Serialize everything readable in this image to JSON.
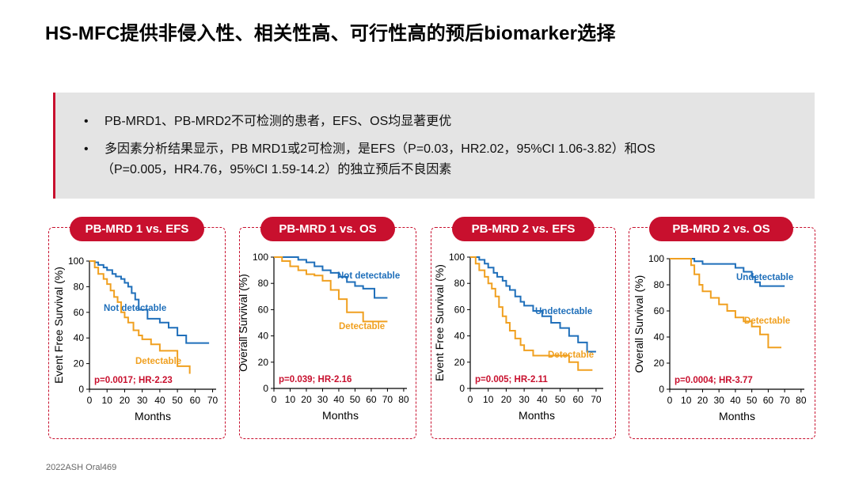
{
  "title": "HS-MFC提供非侵入性、相关性高、可行性高的预后biomarker选择",
  "callout": {
    "bullets": [
      "PB-MRD1、PB-MRD2不可检测的患者，EFS、OS均显著更优",
      "多因素分析结果显示，PB MRD1或2可检测，是EFS（P=0.03，HR2.02，95%CI 1.06-3.82）和OS",
      "（P=0.005，HR4.76，95%CI 1.59-14.2）的独立预后不良因素"
    ],
    "bullet_mark": "•"
  },
  "colors": {
    "accent": "#c8102e",
    "undetectable": "#1f6fba",
    "detectable": "#f0a020",
    "pvalue": "#c8102e"
  },
  "footer": "2022ASH Oral469",
  "chart_data": [
    {
      "type": "line",
      "title": "PB-MRD 1 vs. EFS",
      "ylabel": "Event Free Survival (%)",
      "xlabel": "Months",
      "xticks": [
        0,
        10,
        20,
        30,
        40,
        50,
        60,
        70
      ],
      "yticks": [
        0,
        20,
        40,
        60,
        80,
        100
      ],
      "xlim": [
        0,
        72
      ],
      "ylim": [
        0,
        100
      ],
      "annotation": "p=0.0017; HR-2.23",
      "series": [
        {
          "name": "Not detectable",
          "color": "#1f6fba",
          "x": [
            0,
            3,
            5,
            8,
            10,
            13,
            15,
            18,
            20,
            22,
            24,
            26,
            28,
            33,
            40,
            45,
            50,
            55,
            60,
            68
          ],
          "y": [
            100,
            99,
            97,
            95,
            93,
            90,
            88,
            86,
            83,
            80,
            75,
            70,
            62,
            55,
            52,
            48,
            42,
            36,
            36,
            36
          ]
        },
        {
          "name": "Detectable",
          "color": "#f0a020",
          "x": [
            0,
            3,
            5,
            8,
            10,
            12,
            14,
            16,
            18,
            20,
            22,
            25,
            28,
            30,
            35,
            40,
            45,
            50,
            52,
            57
          ],
          "y": [
            100,
            95,
            90,
            86,
            82,
            77,
            72,
            68,
            60,
            56,
            52,
            46,
            42,
            39,
            35,
            30,
            30,
            18,
            18,
            12
          ]
        }
      ]
    },
    {
      "type": "line",
      "title": "PB-MRD 1 vs. OS",
      "ylabel": "Overall Survival (%)",
      "xlabel": "Months",
      "xticks": [
        0,
        10,
        20,
        30,
        40,
        50,
        60,
        70,
        80
      ],
      "yticks": [
        0,
        20,
        40,
        60,
        80,
        100
      ],
      "xlim": [
        0,
        82
      ],
      "ylim": [
        0,
        100
      ],
      "annotation": "p=0.039; HR-2.16",
      "series": [
        {
          "name": "Not detectable",
          "color": "#1f6fba",
          "x": [
            0,
            10,
            15,
            20,
            25,
            30,
            35,
            40,
            45,
            50,
            55,
            62,
            70
          ],
          "y": [
            100,
            100,
            98,
            96,
            93,
            90,
            88,
            85,
            81,
            78,
            76,
            69,
            69
          ]
        },
        {
          "name": "Detectable",
          "color": "#f0a020",
          "x": [
            0,
            5,
            10,
            15,
            20,
            25,
            30,
            35,
            40,
            45,
            55,
            60,
            70
          ],
          "y": [
            100,
            97,
            93,
            90,
            87,
            86,
            82,
            75,
            68,
            58,
            51,
            51,
            51
          ]
        }
      ]
    },
    {
      "type": "line",
      "title": "PB-MRD 2 vs. EFS",
      "ylabel": "Event Free Survival (%)",
      "xlabel": "Months",
      "xticks": [
        0,
        10,
        20,
        30,
        40,
        50,
        60,
        70
      ],
      "yticks": [
        0,
        20,
        40,
        60,
        80,
        100
      ],
      "xlim": [
        0,
        74
      ],
      "ylim": [
        0,
        100
      ],
      "annotation": "p=0.005; HR-2.11",
      "series": [
        {
          "name": "Undetectable",
          "color": "#1f6fba",
          "x": [
            0,
            5,
            8,
            10,
            13,
            15,
            18,
            20,
            22,
            25,
            28,
            30,
            35,
            40,
            45,
            50,
            55,
            60,
            65,
            70
          ],
          "y": [
            100,
            98,
            95,
            92,
            88,
            85,
            82,
            78,
            75,
            70,
            66,
            63,
            59,
            55,
            50,
            46,
            40,
            35,
            28,
            28
          ]
        },
        {
          "name": "Detectable",
          "color": "#f0a020",
          "x": [
            0,
            3,
            5,
            8,
            10,
            12,
            14,
            16,
            18,
            20,
            22,
            25,
            28,
            30,
            35,
            45,
            55,
            60,
            68
          ],
          "y": [
            100,
            95,
            90,
            85,
            80,
            76,
            70,
            62,
            55,
            50,
            44,
            38,
            33,
            29,
            25,
            25,
            20,
            14,
            14
          ]
        }
      ]
    },
    {
      "type": "line",
      "title": "PB-MRD 2 vs. OS",
      "ylabel": "Overall Survival (%)",
      "xlabel": "Months",
      "xticks": [
        0,
        10,
        20,
        30,
        40,
        50,
        60,
        70,
        80
      ],
      "yticks": [
        0,
        20,
        40,
        60,
        80,
        100
      ],
      "xlim": [
        0,
        82
      ],
      "ylim": [
        0,
        100
      ],
      "annotation": "p=0.0004; HR-3.77",
      "series": [
        {
          "name": "Undetectable",
          "color": "#1f6fba",
          "x": [
            0,
            10,
            15,
            20,
            25,
            30,
            35,
            40,
            45,
            50,
            52,
            55,
            60,
            70
          ],
          "y": [
            100,
            100,
            98,
            96,
            96,
            96,
            96,
            93,
            90,
            86,
            82,
            79,
            79,
            79
          ]
        },
        {
          "name": "Detectable",
          "color": "#f0a020",
          "x": [
            0,
            10,
            13,
            15,
            18,
            20,
            25,
            30,
            35,
            40,
            45,
            50,
            55,
            60,
            68
          ],
          "y": [
            100,
            100,
            95,
            88,
            80,
            75,
            70,
            65,
            60,
            55,
            52,
            48,
            42,
            32,
            32
          ]
        }
      ]
    }
  ]
}
